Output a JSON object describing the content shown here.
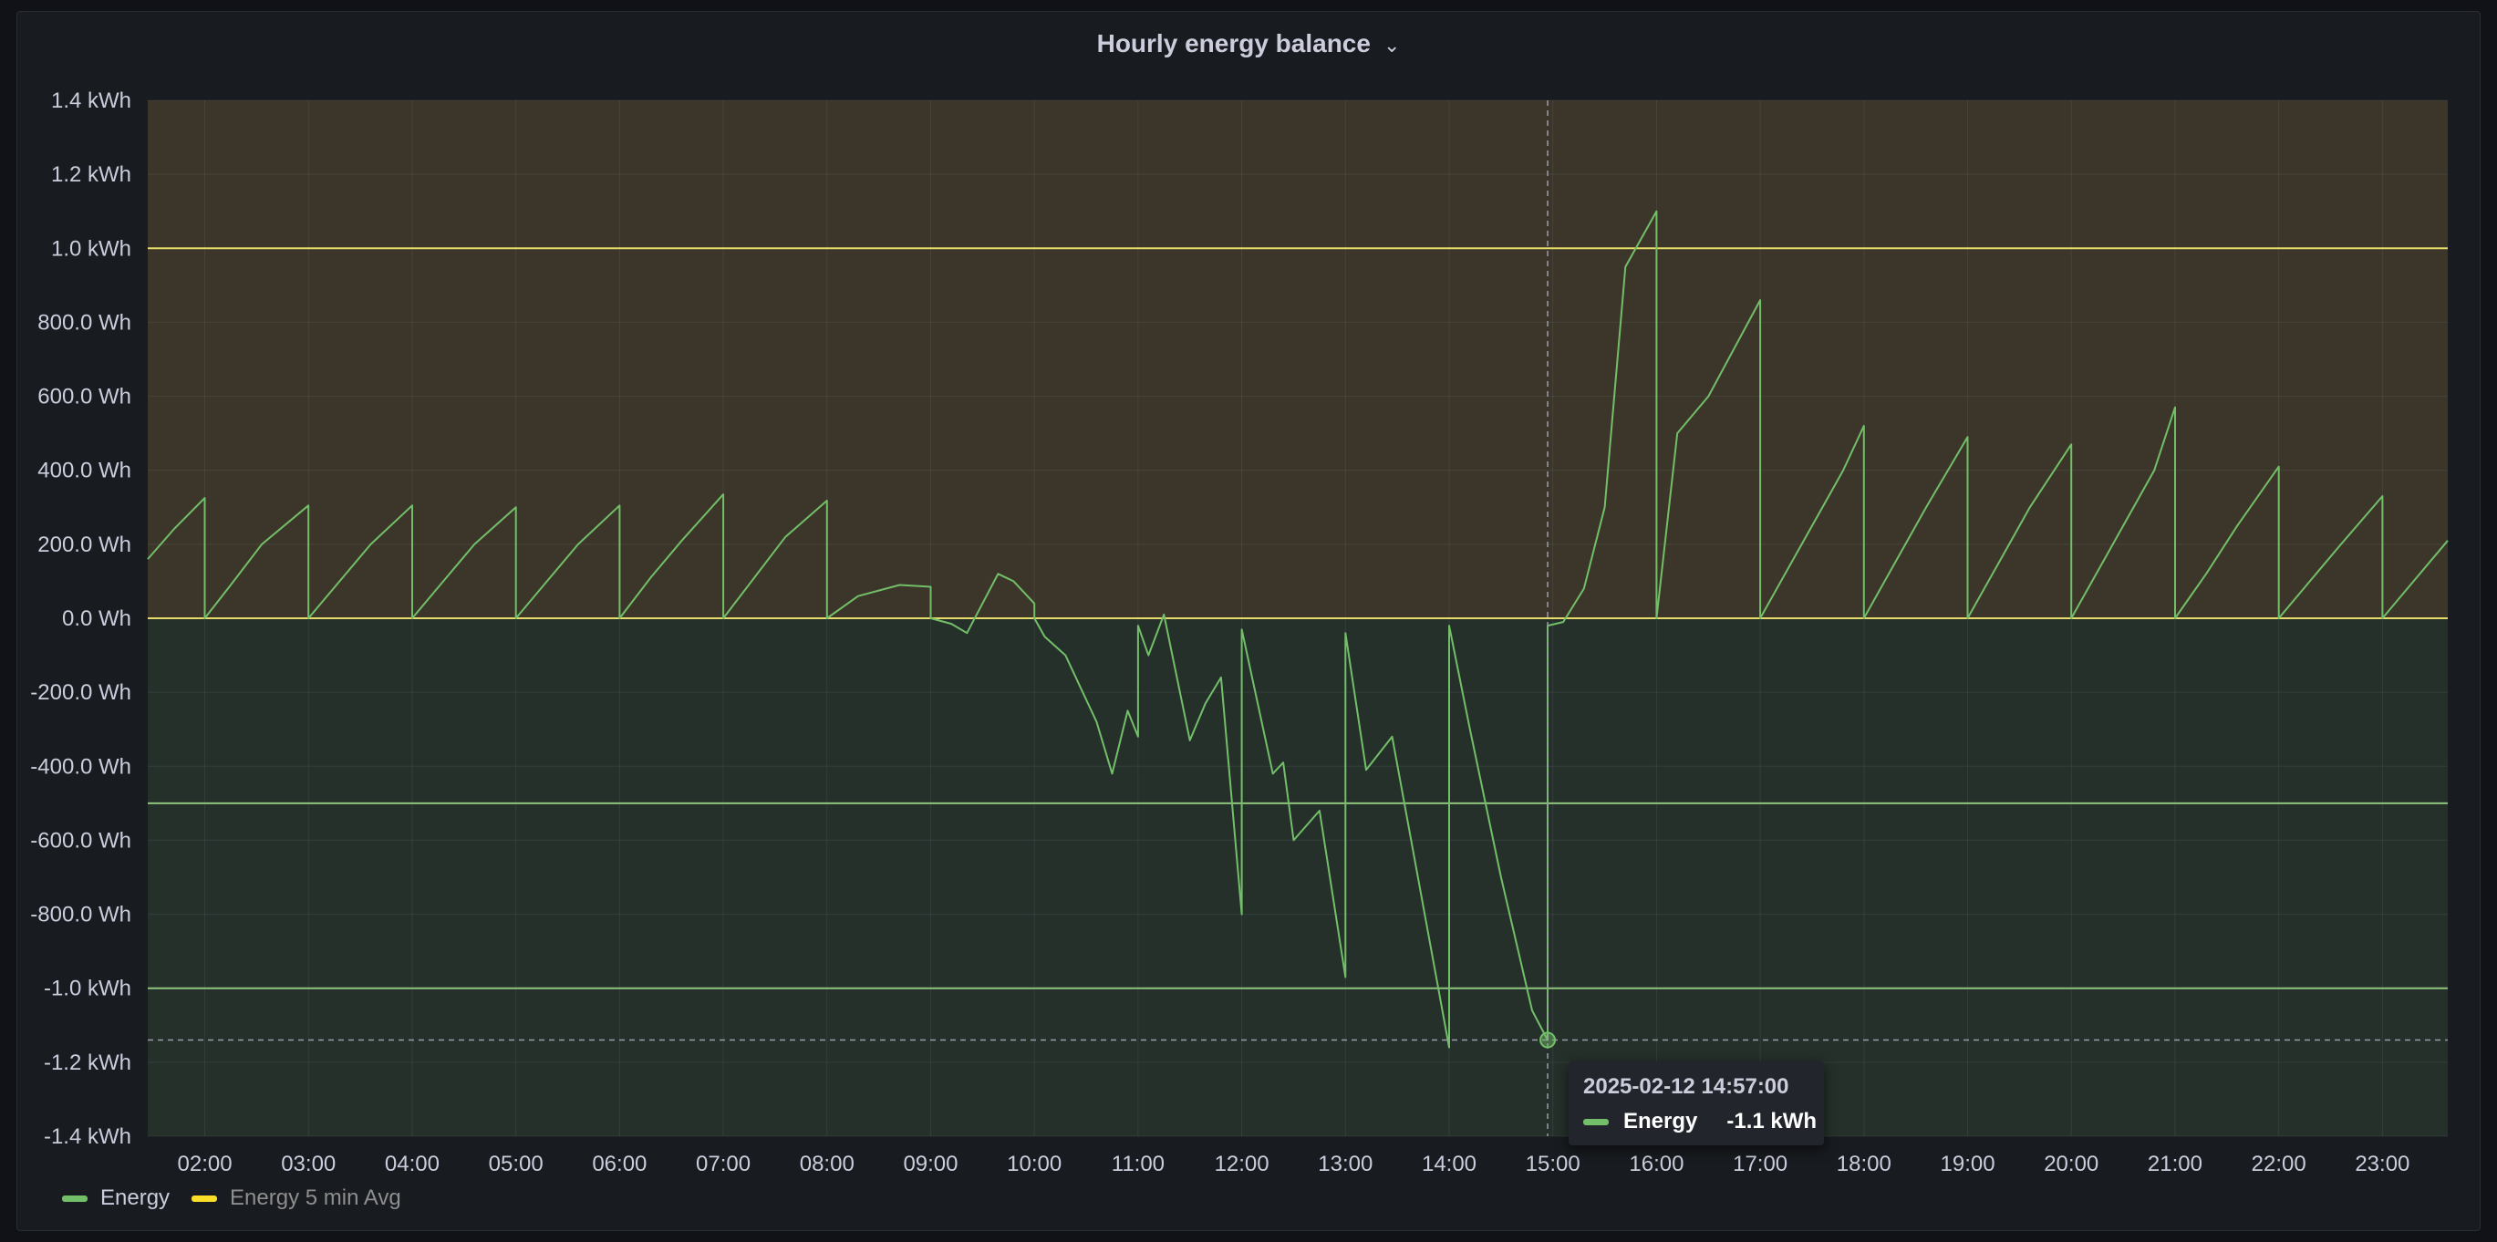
{
  "panel": {
    "title": "Hourly energy balance",
    "menu_icon": "chevron-down-icon"
  },
  "tooltip": {
    "time": "2025-02-12 14:57:00",
    "series": "Energy",
    "value": "-1.1 kWh"
  },
  "colors": {
    "background": "#181b1f",
    "energy": "#73bf69",
    "avg": "#fade2a",
    "threshold_line": "#fade2a",
    "region_pos": "#3b3629",
    "region_neg": "#25302b",
    "text": "#ccccdc",
    "legend_muted": "#8e8e8e"
  },
  "chart_data": {
    "type": "line",
    "title": "Hourly energy balance",
    "x_unit": "hours (2025-02-12)",
    "xlim": [
      1.45,
      23.63
    ],
    "ylim": [
      -1400,
      1400
    ],
    "yticks": [
      {
        "v": 1400,
        "label": "1.4 kWh"
      },
      {
        "v": 1200,
        "label": "1.2 kWh"
      },
      {
        "v": 1000,
        "label": "1.0 kWh"
      },
      {
        "v": 800,
        "label": "800.0 Wh"
      },
      {
        "v": 600,
        "label": "600.0 Wh"
      },
      {
        "v": 400,
        "label": "400.0 Wh"
      },
      {
        "v": 200,
        "label": "200.0 Wh"
      },
      {
        "v": 0,
        "label": "0.0 Wh"
      },
      {
        "v": -200,
        "label": "-200.0 Wh"
      },
      {
        "v": -400,
        "label": "-400.0 Wh"
      },
      {
        "v": -600,
        "label": "-600.0 Wh"
      },
      {
        "v": -800,
        "label": "-800.0 Wh"
      },
      {
        "v": -1000,
        "label": "-1.0 kWh"
      },
      {
        "v": -1200,
        "label": "-1.2 kWh"
      },
      {
        "v": -1400,
        "label": "-1.4 kWh"
      }
    ],
    "xticks": [
      {
        "v": 2,
        "label": "02:00"
      },
      {
        "v": 3,
        "label": "03:00"
      },
      {
        "v": 4,
        "label": "04:00"
      },
      {
        "v": 5,
        "label": "05:00"
      },
      {
        "v": 6,
        "label": "06:00"
      },
      {
        "v": 7,
        "label": "07:00"
      },
      {
        "v": 8,
        "label": "08:00"
      },
      {
        "v": 9,
        "label": "09:00"
      },
      {
        "v": 10,
        "label": "10:00"
      },
      {
        "v": 11,
        "label": "11:00"
      },
      {
        "v": 12,
        "label": "12:00"
      },
      {
        "v": 13,
        "label": "13:00"
      },
      {
        "v": 14,
        "label": "14:00"
      },
      {
        "v": 15,
        "label": "15:00"
      },
      {
        "v": 16,
        "label": "16:00"
      },
      {
        "v": 17,
        "label": "17:00"
      },
      {
        "v": 18,
        "label": "18:00"
      },
      {
        "v": 19,
        "label": "19:00"
      },
      {
        "v": 20,
        "label": "20:00"
      },
      {
        "v": 21,
        "label": "21:00"
      },
      {
        "v": 22,
        "label": "22:00"
      },
      {
        "v": 23,
        "label": "23:00"
      }
    ],
    "thresholds": [
      1000,
      0,
      -500,
      -1000
    ],
    "regions": [
      {
        "from": 0,
        "to": 1400,
        "color": "#3b3629"
      },
      {
        "from": -1400,
        "to": 0,
        "color": "#25302b"
      }
    ],
    "crosshair": {
      "x": 14.95,
      "y": -1140
    },
    "grid": true,
    "legend_position": "bottom-left",
    "series": [
      {
        "name": "Energy",
        "color": "#73bf69",
        "points": [
          [
            1.45,
            160
          ],
          [
            1.7,
            240
          ],
          [
            2.0,
            325
          ],
          [
            2.0,
            0
          ],
          [
            2.25,
            90
          ],
          [
            2.55,
            200
          ],
          [
            3.0,
            305
          ],
          [
            3.0,
            0
          ],
          [
            3.3,
            100
          ],
          [
            3.6,
            200
          ],
          [
            4.0,
            305
          ],
          [
            4.0,
            0
          ],
          [
            4.3,
            100
          ],
          [
            4.6,
            200
          ],
          [
            5.0,
            300
          ],
          [
            5.0,
            0
          ],
          [
            5.3,
            100
          ],
          [
            5.6,
            200
          ],
          [
            6.0,
            305
          ],
          [
            6.0,
            0
          ],
          [
            6.3,
            110
          ],
          [
            6.6,
            210
          ],
          [
            7.0,
            335
          ],
          [
            7.0,
            0
          ],
          [
            7.3,
            110
          ],
          [
            7.6,
            220
          ],
          [
            8.0,
            318
          ],
          [
            8.0,
            0
          ],
          [
            8.3,
            60
          ],
          [
            8.7,
            90
          ],
          [
            9.0,
            85
          ],
          [
            9.0,
            0
          ],
          [
            9.2,
            -15
          ],
          [
            9.35,
            -40
          ],
          [
            9.5,
            40
          ],
          [
            9.65,
            120
          ],
          [
            9.8,
            100
          ],
          [
            10.0,
            40
          ],
          [
            10.0,
            0
          ],
          [
            10.1,
            -50
          ],
          [
            10.3,
            -100
          ],
          [
            10.6,
            -280
          ],
          [
            10.75,
            -420
          ],
          [
            10.9,
            -250
          ],
          [
            11.0,
            -320
          ],
          [
            11.0,
            -20
          ],
          [
            11.1,
            -100
          ],
          [
            11.25,
            10
          ],
          [
            11.5,
            -330
          ],
          [
            11.65,
            -230
          ],
          [
            11.8,
            -160
          ],
          [
            12.0,
            -800
          ],
          [
            12.0,
            -30
          ],
          [
            12.3,
            -420
          ],
          [
            12.4,
            -390
          ],
          [
            12.5,
            -600
          ],
          [
            12.75,
            -520
          ],
          [
            13.0,
            -970
          ],
          [
            13.0,
            -40
          ],
          [
            13.2,
            -410
          ],
          [
            13.45,
            -320
          ],
          [
            14.0,
            -1160
          ],
          [
            14.0,
            -20
          ],
          [
            14.2,
            -300
          ],
          [
            14.5,
            -700
          ],
          [
            14.8,
            -1060
          ],
          [
            14.95,
            -1140
          ],
          [
            14.95,
            -20
          ],
          [
            15.1,
            -10
          ],
          [
            15.3,
            80
          ],
          [
            15.5,
            300
          ],
          [
            15.7,
            950
          ],
          [
            16.0,
            1100
          ],
          [
            16.0,
            0
          ],
          [
            16.2,
            500
          ],
          [
            16.5,
            600
          ],
          [
            17.0,
            860
          ],
          [
            17.0,
            0
          ],
          [
            17.3,
            150
          ],
          [
            17.6,
            300
          ],
          [
            17.8,
            400
          ],
          [
            18.0,
            520
          ],
          [
            18.0,
            0
          ],
          [
            18.3,
            150
          ],
          [
            18.6,
            300
          ],
          [
            19.0,
            490
          ],
          [
            19.0,
            0
          ],
          [
            19.3,
            150
          ],
          [
            19.6,
            300
          ],
          [
            20.0,
            470
          ],
          [
            20.0,
            0
          ],
          [
            20.3,
            150
          ],
          [
            20.6,
            300
          ],
          [
            20.8,
            400
          ],
          [
            21.0,
            570
          ],
          [
            21.0,
            0
          ],
          [
            21.3,
            120
          ],
          [
            21.6,
            250
          ],
          [
            22.0,
            410
          ],
          [
            22.0,
            0
          ],
          [
            22.3,
            100
          ],
          [
            22.6,
            200
          ],
          [
            23.0,
            330
          ],
          [
            23.0,
            0
          ],
          [
            23.3,
            100
          ],
          [
            23.63,
            210
          ]
        ]
      },
      {
        "name": "Energy 5 min Avg",
        "color": "#fade2a",
        "points": []
      }
    ]
  }
}
